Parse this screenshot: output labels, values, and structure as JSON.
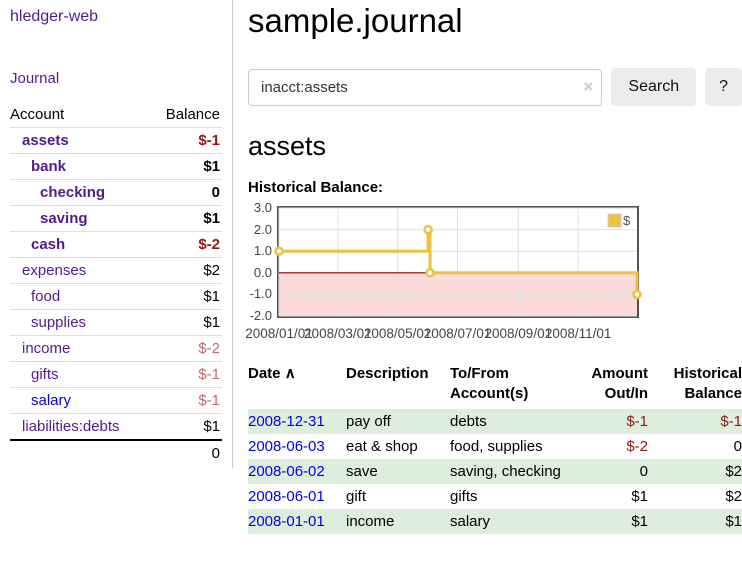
{
  "colors": {
    "link_purple": "#551a8b",
    "link_blue": "#0000ee",
    "negative": "#961616",
    "negative_muted": "#bf6a6a",
    "row_stripe": "#ddeedd",
    "series_gold": "#edc240",
    "negative_region": "#fbdada",
    "zero_line": "#8b0000",
    "chart_border": "#545454",
    "grid_line": "#e0e0e0"
  },
  "sidebar": {
    "brand": "hledger-web",
    "nav": {
      "journal_label": "Journal"
    },
    "accounts_table": {
      "headers": [
        "Account",
        "Balance"
      ],
      "rows": [
        {
          "name": "assets",
          "balance": "$-1",
          "level": 1,
          "bold": true,
          "balance_tone": "negative"
        },
        {
          "name": "bank",
          "balance": "$1",
          "level": 2,
          "bold": true,
          "balance_tone": "normal"
        },
        {
          "name": "checking",
          "balance": "0",
          "level": 3,
          "bold": true,
          "balance_tone": "normal"
        },
        {
          "name": "saving",
          "balance": "$1",
          "level": 3,
          "bold": true,
          "balance_tone": "normal"
        },
        {
          "name": "cash",
          "balance": "$-2",
          "level": 2,
          "bold": true,
          "balance_tone": "negative"
        },
        {
          "name": "expenses",
          "balance": "$2",
          "level": 1,
          "bold": false,
          "balance_tone": "normal"
        },
        {
          "name": "food",
          "balance": "$1",
          "level": 2,
          "bold": false,
          "balance_tone": "normal"
        },
        {
          "name": "supplies",
          "balance": "$1",
          "level": 2,
          "bold": false,
          "balance_tone": "normal"
        },
        {
          "name": "income",
          "balance": "$-2",
          "level": 1,
          "bold": false,
          "balance_tone": "negative-muted"
        },
        {
          "name": "gifts",
          "balance": "$-1",
          "level": 2,
          "bold": false,
          "balance_tone": "negative-muted"
        },
        {
          "name": "salary",
          "balance": "$-1",
          "level": 2,
          "bold": false,
          "balance_tone": "negative-muted",
          "link_tone": "unvisited"
        },
        {
          "name": "liabilities:debts",
          "balance": "$1",
          "level": 1,
          "bold": false,
          "balance_tone": "normal",
          "last": true
        }
      ],
      "total": "0"
    }
  },
  "main": {
    "title": "sample.journal",
    "search": {
      "value": "inacct:assets",
      "clear_icon": "×",
      "button_label": "Search",
      "help_label": "?"
    },
    "account_heading": "assets",
    "chart_heading": "Historical Balance:",
    "register_table": {
      "sort_icon": "∧",
      "headers": [
        "Date",
        "Description",
        "To/From Account(s)",
        "Amount Out/In",
        "Historical Balance"
      ],
      "rows": [
        {
          "date": "2008-12-31",
          "description": "pay off",
          "accounts": "debts",
          "amount": "$-1",
          "balance": "$-1"
        },
        {
          "date": "2008-06-03",
          "description": "eat & shop",
          "accounts": "food, supplies",
          "amount": "$-2",
          "balance": "0"
        },
        {
          "date": "2008-06-02",
          "description": "save",
          "accounts": "saving, checking",
          "amount": "0",
          "balance": "$2"
        },
        {
          "date": "2008-06-01",
          "description": "gift",
          "accounts": "gifts",
          "amount": "$1",
          "balance": "$2"
        },
        {
          "date": "2008-01-01",
          "description": "income",
          "accounts": "salary",
          "amount": "$1",
          "balance": "$1"
        }
      ]
    }
  },
  "chart_data": {
    "type": "line",
    "step": true,
    "title": "Historical Balance:",
    "x_range": [
      "2008-01-01",
      "2008-12-31"
    ],
    "ylim": [
      -2,
      3
    ],
    "y_ticks": [
      3.0,
      2.0,
      1.0,
      0.0,
      -1.0,
      -2.0
    ],
    "x_ticks": [
      {
        "date": "2008-01-01",
        "label": "2008/01/01"
      },
      {
        "date": "2008-03-01",
        "label": "2008/03/01"
      },
      {
        "date": "2008-05-01",
        "label": "2008/05/01"
      },
      {
        "date": "2008-07-01",
        "label": "2008/07/01"
      },
      {
        "date": "2008-09-01",
        "label": "2008/09/01"
      },
      {
        "date": "2008-11-01",
        "label": "2008/11/01"
      }
    ],
    "series": [
      {
        "name": "$",
        "color": "#edc240",
        "points": [
          {
            "x": "2008-01-01",
            "y": 1
          },
          {
            "x": "2008-06-01",
            "y": 2
          },
          {
            "x": "2008-06-03",
            "y": 0
          },
          {
            "x": "2008-12-31",
            "y": -1
          }
        ]
      }
    ],
    "legend": {
      "position": "top-right",
      "entries": [
        "$"
      ]
    },
    "grid": true,
    "negative_region_shaded": true
  }
}
